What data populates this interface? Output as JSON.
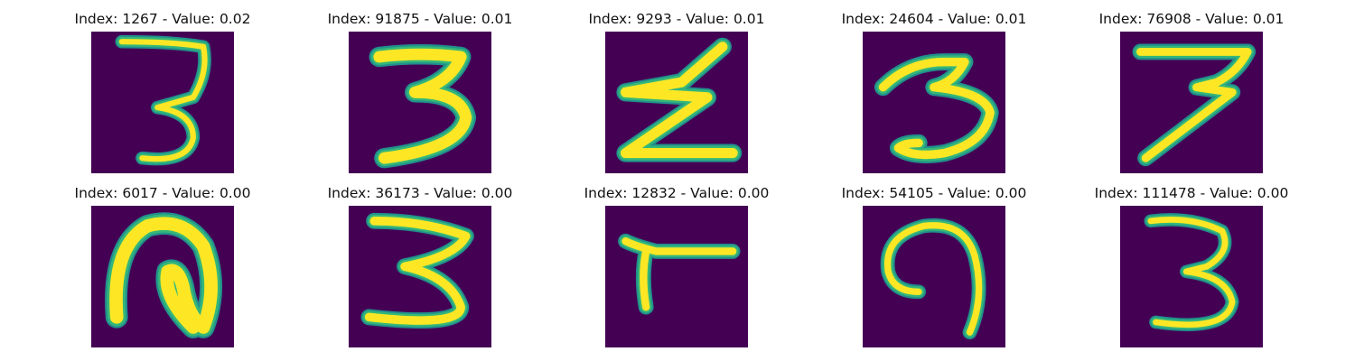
{
  "figure": {
    "panels": [
      {
        "title": "Index: 1267 - Value: 0.02",
        "digit": "3a"
      },
      {
        "title": "Index: 91875 - Value: 0.01",
        "digit": "3b"
      },
      {
        "title": "Index: 9293 - Value: 0.01",
        "digit": "z"
      },
      {
        "title": "Index: 24604 - Value: 0.01",
        "digit": "3c"
      },
      {
        "title": "Index: 76908 - Value: 0.01",
        "digit": "7"
      },
      {
        "title": "Index: 6017 - Value: 0.00",
        "digit": "loop"
      },
      {
        "title": "Index: 36173 - Value: 0.00",
        "digit": "3d"
      },
      {
        "title": "Index: 12832 - Value: 0.00",
        "digit": "L"
      },
      {
        "title": "Index: 54105 - Value: 0.00",
        "digit": "9"
      },
      {
        "title": "Index: 111478 - Value: 0.00",
        "digit": "3e"
      }
    ],
    "colors": {
      "background": "#440154",
      "stroke_core": "#fde725",
      "stroke_edge": "#35b779",
      "stroke_outer": "#21918c"
    }
  }
}
